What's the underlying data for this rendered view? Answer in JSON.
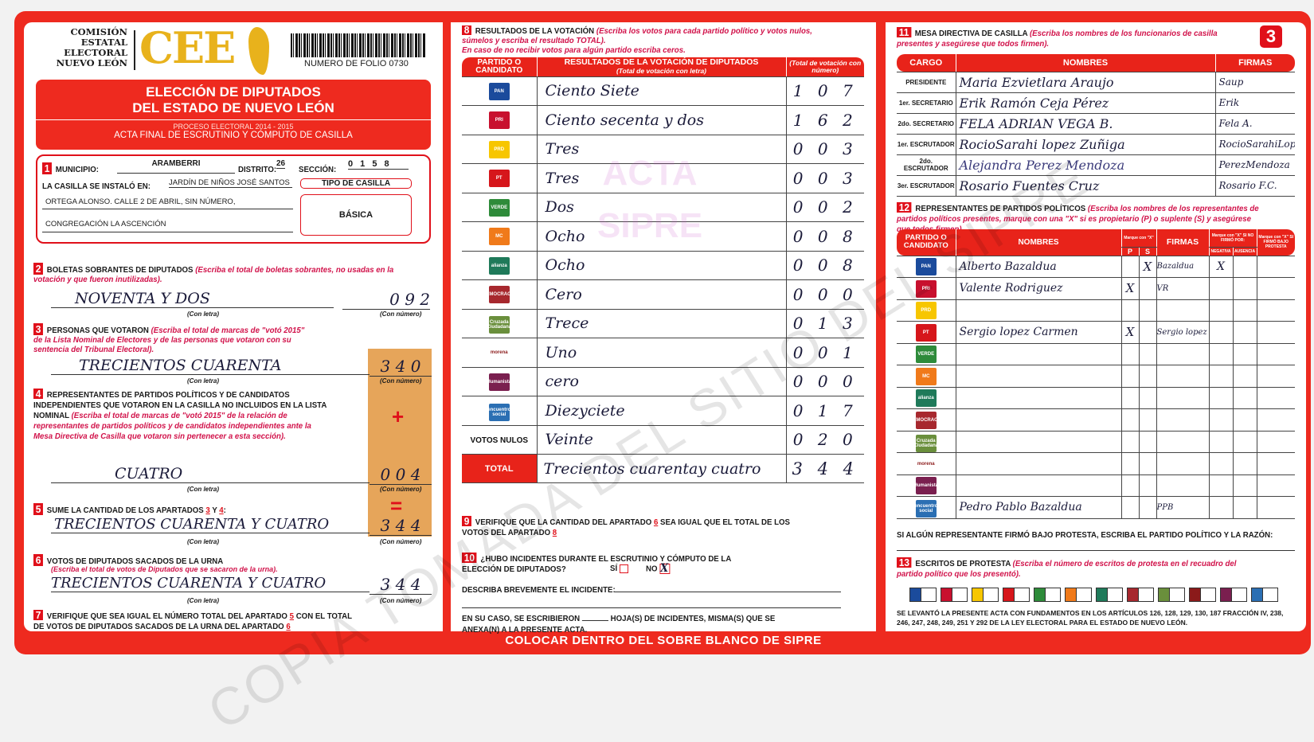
{
  "header": {
    "org": [
      "COMISIÓN",
      "ESTATAL",
      "ELECTORAL",
      "NUEVO LEÓN"
    ],
    "logo": "CEE",
    "folio": "NUMERO DE FOLIO 0730",
    "title1": "ELECCIÓN DE DIPUTADOS",
    "title2": "DEL ESTADO DE NUEVO LEÓN",
    "process": "PROCESO ELECTORAL 2014 - 2015",
    "acta": "ACTA FINAL DE ESCRUTINIO Y CÓMPUTO DE CASILLA",
    "sheet": "3"
  },
  "s1": {
    "n": "1",
    "municipio_label": "MUNICIPIO:",
    "municipio": "ARAMBERRI",
    "distrito_label": "DISTRITO:",
    "distrito": "26",
    "seccion_label": "SECCIÓN:",
    "seccion": "0 1 5 8",
    "instalo_label": "LA CASILLA SE INSTALÓ EN:",
    "addr1": "JARDÍN DE NIÑOS JOSÉ SANTOS",
    "addr2": "ORTEGA ALONSO. CALLE 2 DE ABRIL, SIN NÚMERO,",
    "addr3": "CONGREGACIÓN LA ASCENCIÓN",
    "tipo_label": "TIPO DE CASILLA",
    "tipo": "BÁSICA"
  },
  "common": {
    "con_letra": "(Con letra)",
    "con_numero": "(Con número)",
    "plus": "+",
    "equals": "="
  },
  "s2": {
    "n": "2",
    "title": "BOLETAS SOBRANTES DE DIPUTADOS",
    "ins": "(Escriba el total de boletas sobrantes, no usadas en la votación y que fueron inutilizadas).",
    "letra": "NOVENTA Y DOS",
    "numero": "0 9 2"
  },
  "s3": {
    "n": "3",
    "title": "PERSONAS QUE VOTARON",
    "ins": "(Escriba el total de marcas de \"votó 2015\" de la Lista Nominal de Electores y de las personas que votaron con su sentencia del Tribunal Electoral).",
    "letra": "TRECIENTOS CUARENTA",
    "numero": "3 4 0"
  },
  "s4": {
    "n": "4",
    "title": "REPRESENTANTES DE PARTIDOS POLÍTICOS Y DE CANDIDATOS INDEPENDIENTES QUE VOTARON EN LA CASILLA NO INCLUIDOS EN LA LISTA NOMINAL",
    "ins": "(Escriba el total de marcas de \"votó 2015\" de la relación de representantes de partidos políticos y de candidatos independientes ante la Mesa Directiva de Casilla que votaron sin pertenecer a esta sección).",
    "letra": "CUATRO",
    "numero": "0 0 4"
  },
  "s5": {
    "n": "5",
    "title": "SUME LA CANTIDAD DE LOS APARTADOS",
    "a": "3",
    "y": "Y",
    "b": "4",
    "colon": ":",
    "letra": "TRECIENTOS CUARENTA Y CUATRO",
    "numero": "3 4 4"
  },
  "s6": {
    "n": "6",
    "title": "VOTOS DE DIPUTADOS SACADOS DE LA URNA",
    "ins": "(Escriba el total de votos de Diputados que se sacaron de la urna).",
    "letra": "TRECIENTOS CUARENTA Y CUATRO",
    "numero": "3 4 4"
  },
  "s7": {
    "n": "7",
    "t1": "VERIFIQUE QUE SEA IGUAL EL NÚMERO TOTAL DEL APARTADO",
    "a": "5",
    "t2": "CON EL TOTAL DE VOTOS DE DIPUTADOS SACADOS DE LA URNA DEL APARTADO",
    "b": "6"
  },
  "s8": {
    "n": "8",
    "title": "RESULTADOS DE LA VOTACIÓN",
    "ins": "(Escriba los votos para cada partido político y votos nulos, súmelos y escriba el resultado TOTAL).",
    "ins2": "En caso de no recibir votos para algún partido escriba ceros.",
    "col1": "PARTIDO O CANDIDATO",
    "col2": "RESULTADOS DE LA VOTACIÓN DE DIPUTADOS",
    "col2b": "(Total de votación con letra)",
    "col3": "(Total de votación con número)",
    "rows": [
      {
        "party": "PAN",
        "color": "#1b4b9c",
        "letra": "Ciento Siete",
        "numero": "1 0 7"
      },
      {
        "party": "PRI",
        "color": "#c8102e",
        "letra": "Ciento secenta y dos",
        "numero": "1 6 2"
      },
      {
        "party": "PRD",
        "color": "#f7c600",
        "letra": "Tres",
        "numero": "0 0 3"
      },
      {
        "party": "PT",
        "color": "#d6161b",
        "letra": "Tres",
        "numero": "0 0 3"
      },
      {
        "party": "VERDE",
        "color": "#2e8b3a",
        "letra": "Dos",
        "numero": "0 0 2"
      },
      {
        "party": "MC",
        "color": "#f07a1a",
        "letra": "Ocho",
        "numero": "0 0 8"
      },
      {
        "party": "alianza",
        "color": "#1f7a5a",
        "letra": "Ocho",
        "numero": "0 0 8"
      },
      {
        "party": "DEMOCRACIA",
        "color": "#a7282e",
        "letra": "Cero",
        "numero": "0 0 0"
      },
      {
        "party": "Cruzada Ciudadana",
        "color": "#6a8f3c",
        "letra": "Trece",
        "numero": "0 1 3"
      },
      {
        "party": "morena",
        "color": "#8b1a1a",
        "letra": "Uno",
        "numero": "0 0 1"
      },
      {
        "party": "Humanista",
        "color": "#7a1f4f",
        "letra": "cero",
        "numero": "0 0 0"
      },
      {
        "party": "encuentro social",
        "color": "#2b6fb3",
        "letra": "Diezyciete",
        "numero": "0 1 7"
      },
      {
        "party": "VOTOS NULOS",
        "color": "",
        "letra": "Veinte",
        "numero": "0 2 0"
      }
    ],
    "total_label": "TOTAL",
    "total_letra": "Trecientos cuarentay cuatro",
    "total_numero": "3 4 4"
  },
  "s9": {
    "n": "9",
    "t1": "VERIFIQUE QUE LA CANTIDAD DEL APARTADO",
    "a": "6",
    "t2": "SEA IGUAL QUE EL TOTAL DE LOS VOTOS DEL APARTADO",
    "b": "8"
  },
  "s10": {
    "n": "10",
    "q": "¿HUBO INCIDENTES DURANTE EL ESCRUTINIO Y CÓMPUTO DE LA ELECCIÓN DE DIPUTADOS?",
    "si": "SÍ",
    "no": "NO",
    "mark": "X",
    "describe": "DESCRIBA BREVEMENTE EL INCIDENTE:",
    "hojas1": "EN SU CASO, SE ESCRIBIERON",
    "hojas2": "HOJA(S) DE INCIDENTES, MISMA(S) QUE SE ANEXA(N) A LA PRESENTE ACTA."
  },
  "banner": "COLOCAR DENTRO DEL SOBRE BLANCO DE SIPRE",
  "s11": {
    "n": "11",
    "title": "MESA DIRECTIVA DE CASILLA",
    "ins": "(Escriba los nombres de los funcionarios de casilla presentes y asegúrese que todos firmen).",
    "col1": "CARGO",
    "col2": "NOMBRES",
    "col3": "FIRMAS",
    "rows": [
      {
        "cargo": "PRESIDENTE",
        "nombre": "Maria Ezvietlara Araujo",
        "firma": "Saup"
      },
      {
        "cargo": "1er. SECRETARIO",
        "nombre": "Erik Ramón Ceja Pérez",
        "firma": "Erik"
      },
      {
        "cargo": "2do. SECRETARIO",
        "nombre": "FELA ADRIAN VEGA B.",
        "firma": "Fela A."
      },
      {
        "cargo": "1er. ESCRUTADOR",
        "nombre": "RocioSarahi lopez Zuñiga",
        "firma": "RocioSarahiLopez"
      },
      {
        "cargo": "2do. ESCRUTADOR",
        "nombre": "Alejandra Perez Mendoza",
        "firma": "PerezMendoza"
      },
      {
        "cargo": "3er. ESCRUTADOR",
        "nombre": "Rosario Fuentes Cruz",
        "firma": "Rosario F.C."
      }
    ]
  },
  "s12": {
    "n": "12",
    "title": "REPRESENTANTES DE PARTIDOS POLÍTICOS",
    "ins": "(Escriba los nombres de los representantes de partidos políticos presentes, marque con una \"X\" si es propietario (P) o suplente (S) y asegúrese que todos firmen).",
    "col1": "PARTIDO O CANDIDATO",
    "col2": "NOMBRES",
    "col_marque": "Marque con \"X\"",
    "p": "P",
    "s": "S",
    "col3": "FIRMAS",
    "col4": "Marque con \"X\" SI NO FIRMÓ POR:",
    "negativa": "NEGATIVA",
    "ausencia": "AUSENCIA",
    "col5": "Marque con \"X\" SI FIRMÓ BAJO PROTESTA",
    "rows": [
      {
        "party": "PAN",
        "nombre": "Alberto Bazaldua",
        "p": "",
        "s": "X",
        "firma": "Bazaldua",
        "neg": "X"
      },
      {
        "party": "PRI",
        "nombre": "Valente Rodriguez",
        "p": "X",
        "s": "",
        "firma": "VR",
        "neg": ""
      },
      {
        "party": "PRD",
        "nombre": "",
        "p": "",
        "s": "",
        "firma": "",
        "neg": ""
      },
      {
        "party": "PT",
        "nombre": "Sergio lopez Carmen",
        "p": "X",
        "s": "",
        "firma": "Sergio lopez",
        "neg": ""
      },
      {
        "party": "VERDE",
        "nombre": "",
        "p": "",
        "s": "",
        "firma": "",
        "neg": ""
      },
      {
        "party": "MC",
        "nombre": "",
        "p": "",
        "s": "",
        "firma": "",
        "neg": ""
      },
      {
        "party": "alianza",
        "nombre": "",
        "p": "",
        "s": "",
        "firma": "",
        "neg": ""
      },
      {
        "party": "DEMOCRACIA",
        "nombre": "",
        "p": "",
        "s": "",
        "firma": "",
        "neg": ""
      },
      {
        "party": "Cruzada Ciudadana",
        "nombre": "",
        "p": "",
        "s": "",
        "firma": "",
        "neg": ""
      },
      {
        "party": "morena",
        "nombre": "",
        "p": "",
        "s": "",
        "firma": "",
        "neg": ""
      },
      {
        "party": "Humanista",
        "nombre": "",
        "p": "",
        "s": "",
        "firma": "",
        "neg": ""
      },
      {
        "party": "encuentro social",
        "nombre": "Pedro Pablo Bazaldua",
        "p": "",
        "s": "",
        "firma": "PPB",
        "neg": ""
      }
    ],
    "protesta": "SI ALGÚN REPRESENTANTE FIRMÓ BAJO PROTESTA, ESCRIBA EL PARTIDO POLÍTICO Y LA RAZÓN:"
  },
  "s13": {
    "n": "13",
    "title": "ESCRITOS DE PROTESTA",
    "ins": "(Escriba el número de escritos de protesta en el recuadro del partido político que los presentó).",
    "legal": "SE LEVANTÓ LA PRESENTE ACTA CON FUNDAMENTOS EN LOS ARTÍCULOS 126, 128, 129, 130, 187 FRACCIÓN IV, 238, 246, 247, 248, 249, 251 Y 292 DE LA LEY ELECTORAL PARA EL ESTADO DE NUEVO LEÓN."
  },
  "watermark": "COPIA TOMADA DEL SITIO DEL SIPRE",
  "stamp": [
    "ACTA",
    "SIPRE"
  ]
}
